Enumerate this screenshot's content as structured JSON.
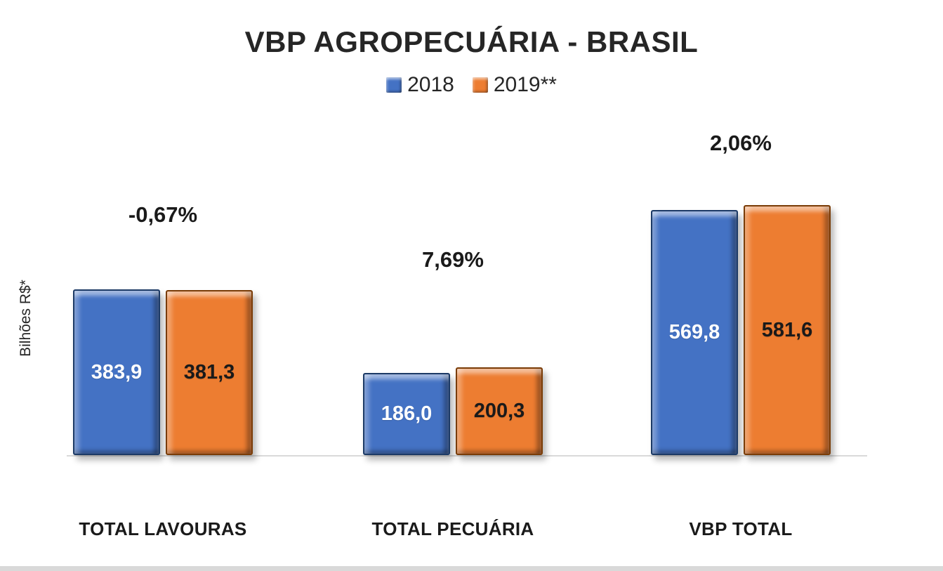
{
  "chart_data": {
    "type": "bar",
    "title": "VBP AGROPECUÁRIA - BRASIL",
    "ylabel": "Bilhões R$*",
    "xlabel": "",
    "categories": [
      "TOTAL LAVOURAS",
      "TOTAL PECUÁRIA",
      "VBP TOTAL"
    ],
    "series": [
      {
        "name": "2018",
        "color": "#4472C4",
        "values": [
          383.9,
          186.0,
          569.8
        ],
        "labels": [
          "383,9",
          "186,0",
          "569,8"
        ],
        "label_color": "#ffffff"
      },
      {
        "name": "2019**",
        "color": "#ED7D31",
        "values": [
          381.3,
          200.3,
          581.6
        ],
        "labels": [
          "381,3",
          "200,3",
          "581,6"
        ],
        "label_color": "#1a1a1a"
      }
    ],
    "annotations": [
      "-0,67%",
      "7,69%",
      "2,06%"
    ],
    "ylim": [
      0,
      620
    ],
    "grid": false,
    "legend_position": "top"
  }
}
